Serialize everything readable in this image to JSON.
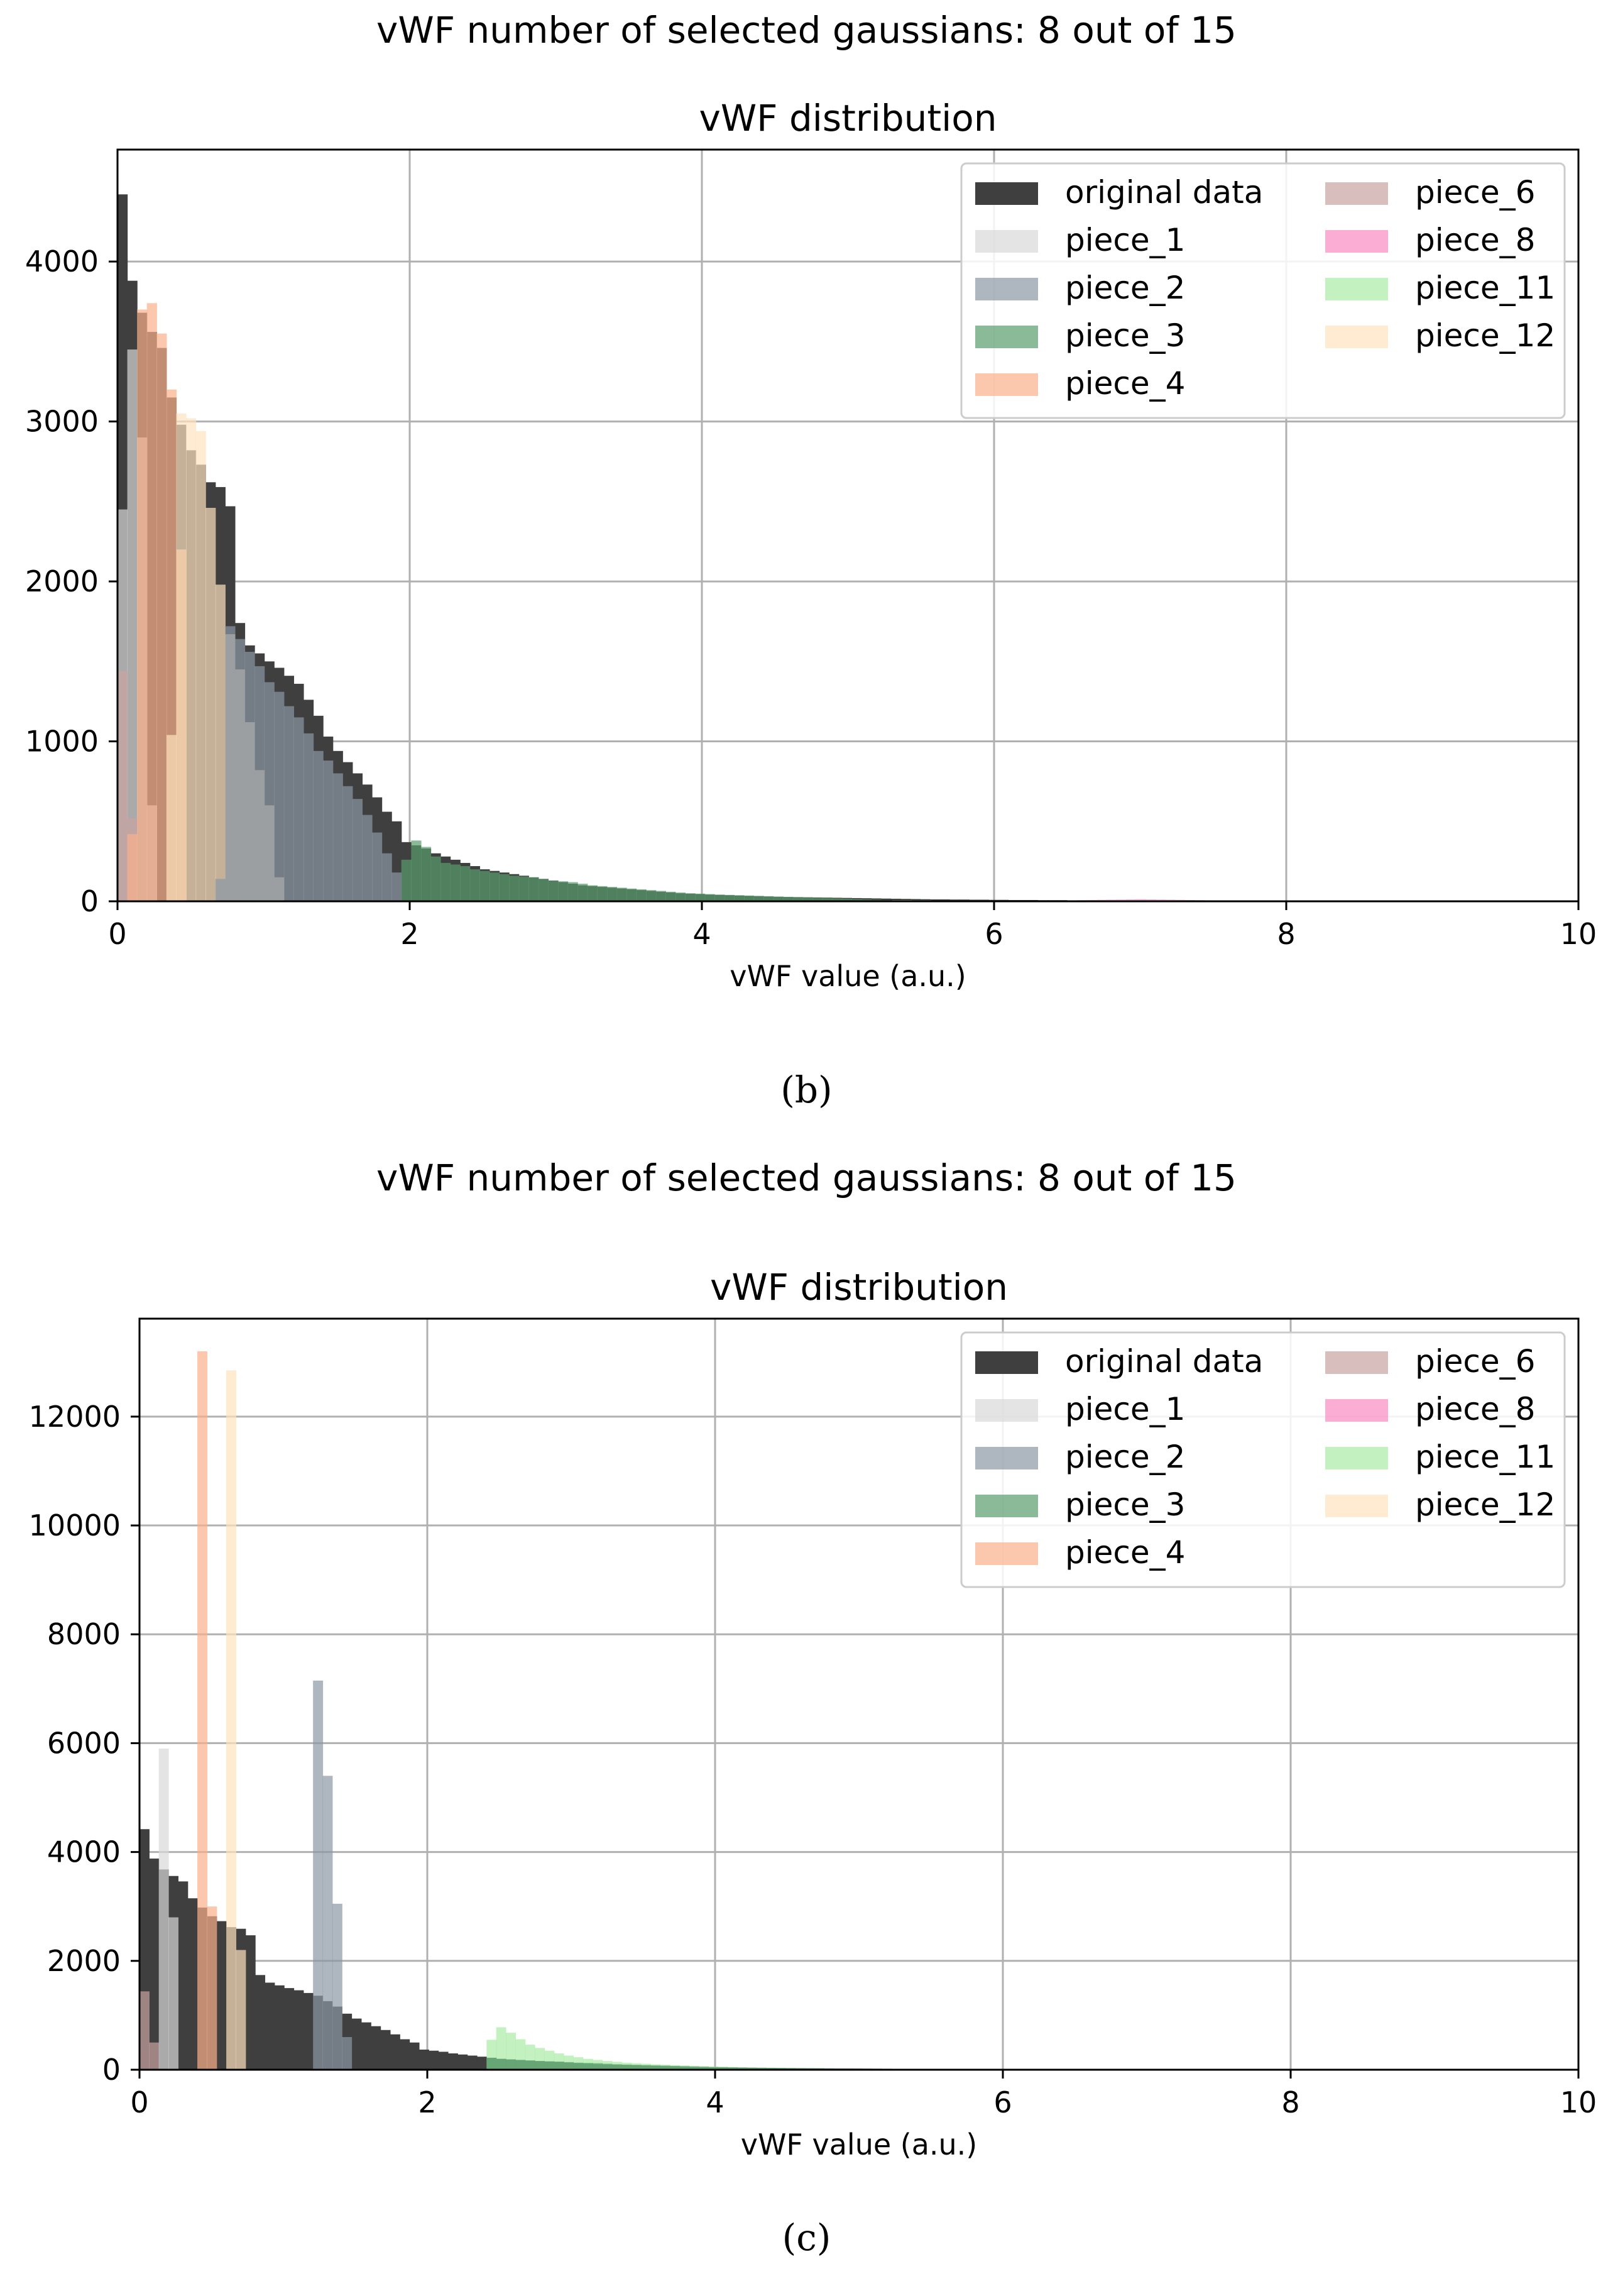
{
  "colors": {
    "original": "#3f3f3f",
    "piece_1": "#d9d9d9",
    "piece_2": "#8c97a5",
    "piece_3": "#5a9c6e",
    "piece_4": "#f9b08c",
    "piece_6": "#c7a3a1",
    "piece_8": "#f98ac0",
    "piece_11": "#a9eda5",
    "piece_12": "#fde3bd"
  },
  "panels": [
    {
      "suptitle": "vWF number of selected gaussians: 8 out of 15",
      "caption": "(b)",
      "chart_data": {
        "type": "bar",
        "title": "vWF distribution",
        "xlabel": "vWF value (a.u.)",
        "ylabel": "",
        "xlim": [
          0,
          10
        ],
        "ylim": [
          0,
          4700
        ],
        "xticks": [
          0,
          2,
          4,
          6,
          8,
          10
        ],
        "xtick_labels": [
          "0",
          "2",
          "4",
          "6",
          "8",
          "10"
        ],
        "yticks": [
          0,
          1000,
          2000,
          3000,
          4000
        ],
        "ytick_labels": [
          "0",
          "1000",
          "2000",
          "3000",
          "4000"
        ],
        "grid": true,
        "legend_position": "top-right",
        "legend": [
          "original data",
          "piece_1",
          "piece_2",
          "piece_3",
          "piece_4",
          "piece_6",
          "piece_8",
          "piece_11",
          "piece_12"
        ],
        "series": [
          {
            "name": "original data",
            "colorKey": "original",
            "opacity": 1,
            "bin_start": 0,
            "bin_width": 0.067,
            "values": [
              4420,
              3880,
              3680,
              3560,
              3460,
              3150,
              2980,
              2820,
              2730,
              2620,
              2590,
              2470,
              1740,
              1600,
              1550,
              1500,
              1460,
              1410,
              1360,
              1260,
              1160,
              1030,
              940,
              870,
              800,
              730,
              650,
              560,
              500,
              370,
              350,
              330,
              300,
              280,
              260,
              240,
              220,
              200,
              190,
              180,
              170,
              160,
              150,
              140,
              130,
              120,
              110,
              100,
              95,
              90,
              85,
              80,
              75,
              70,
              65,
              60,
              55,
              50,
              48,
              45,
              42,
              40,
              38,
              36,
              34,
              32,
              30,
              28,
              27,
              26,
              25,
              24,
              23,
              22,
              21,
              20,
              19,
              18,
              17,
              16,
              15,
              14,
              13,
              12,
              12,
              11,
              11,
              10,
              10,
              9,
              9,
              8,
              8,
              8,
              7,
              7,
              7,
              6,
              6,
              6,
              5,
              5,
              5,
              5,
              4,
              4,
              4,
              4,
              3,
              3,
              3,
              3,
              3,
              3,
              3,
              3,
              3,
              3,
              3,
              3,
              3,
              3,
              3,
              3,
              3,
              3,
              3,
              3,
              3,
              3,
              3,
              3,
              3,
              3,
              3,
              3,
              3,
              3,
              3,
              3,
              3,
              3,
              3,
              3,
              3,
              3,
              3,
              3
            ]
          },
          {
            "name": "piece_1",
            "colorKey": "piece_1",
            "opacity": 0.7,
            "bin_start": 0,
            "bin_width": 0.067,
            "values": [
              2450,
              3450,
              2900,
              600
            ]
          },
          {
            "name": "piece_6",
            "colorKey": "piece_6",
            "opacity": 0.7,
            "bin_start": 0,
            "bin_width": 0.067,
            "values": [
              1440,
              520
            ]
          },
          {
            "name": "piece_4",
            "colorKey": "piece_4",
            "opacity": 0.7,
            "bin_start": 0.067,
            "bin_width": 0.067,
            "values": [
              420,
              3700,
              3740,
              3550,
              3200,
              2200
            ]
          },
          {
            "name": "piece_12",
            "colorKey": "piece_12",
            "opacity": 0.7,
            "bin_start": 0.335,
            "bin_width": 0.067,
            "values": [
              1040,
              3050,
              3020,
              2940,
              2460,
              1980,
              1670,
              1450,
              1120,
              820,
              600,
              150
            ]
          },
          {
            "name": "piece_2",
            "colorKey": "piece_2",
            "opacity": 0.7,
            "bin_start": 0.67,
            "bin_width": 0.067,
            "values": [
              140,
              1720,
              1640,
              1560,
              1470,
              1370,
              1310,
              1220,
              1150,
              1050,
              940,
              880,
              800,
              720,
              640,
              540,
              430,
              300,
              180
            ]
          },
          {
            "name": "piece_3",
            "colorKey": "piece_3",
            "opacity": 0.7,
            "bin_start": 1.943,
            "bin_width": 0.067,
            "values": [
              260,
              380,
              340,
              280,
              240,
              230,
              220,
              200,
              190,
              180,
              170,
              160,
              155,
              150,
              140,
              130,
              125,
              120,
              110,
              100,
              95,
              90,
              85,
              80,
              75,
              70,
              65,
              60,
              55,
              50,
              48,
              45,
              42,
              40,
              38,
              36,
              34,
              32,
              30,
              28,
              26,
              24,
              22,
              20,
              18,
              16,
              14,
              12,
              10,
              8
            ]
          },
          {
            "name": "piece_11",
            "colorKey": "piece_11",
            "opacity": 0.7,
            "bin_start": 5.3,
            "bin_width": 0.067,
            "values": [
              8,
              8,
              7,
              7,
              6,
              6,
              6,
              5,
              5,
              5,
              5,
              4,
              4,
              4,
              4,
              3,
              3,
              3,
              3,
              3
            ]
          },
          {
            "name": "piece_8",
            "colorKey": "piece_8",
            "opacity": 0.7,
            "bin_start": 6.3,
            "bin_width": 0.067,
            "values": [
              3,
              4,
              5,
              6,
              7,
              8,
              9,
              10,
              11,
              12,
              13,
              12,
              11,
              10,
              9,
              8,
              7,
              6,
              5,
              5,
              4,
              4,
              4,
              3,
              3,
              3,
              3,
              3,
              3,
              3,
              3,
              3,
              3,
              3,
              3,
              3,
              3,
              3,
              3,
              3
            ]
          }
        ]
      }
    },
    {
      "suptitle": "vWF number of selected gaussians: 8 out of 15",
      "caption": "(c)",
      "chart_data": {
        "type": "bar",
        "title": "vWF distribution",
        "xlabel": "vWF value (a.u.)",
        "ylabel": "",
        "xlim": [
          0,
          10
        ],
        "ylim": [
          0,
          13800
        ],
        "xticks": [
          0,
          2,
          4,
          6,
          8,
          10
        ],
        "xtick_labels": [
          "0",
          "2",
          "4",
          "6",
          "8",
          "10"
        ],
        "yticks": [
          0,
          2000,
          4000,
          6000,
          8000,
          10000,
          12000
        ],
        "ytick_labels": [
          "0",
          "2000",
          "4000",
          "6000",
          "8000",
          "10000",
          "12000"
        ],
        "grid": true,
        "legend_position": "top-right",
        "legend": [
          "original data",
          "piece_1",
          "piece_2",
          "piece_3",
          "piece_4",
          "piece_6",
          "piece_8",
          "piece_11",
          "piece_12"
        ],
        "series": [
          {
            "name": "original data",
            "colorKey": "original",
            "opacity": 1,
            "bin_start": 0,
            "bin_width": 0.067,
            "values": [
              4420,
              3880,
              3680,
              3560,
              3460,
              3150,
              2980,
              2820,
              2730,
              2620,
              2590,
              2470,
              1740,
              1600,
              1550,
              1500,
              1460,
              1410,
              1360,
              1260,
              1160,
              1030,
              940,
              870,
              800,
              730,
              650,
              560,
              500,
              370,
              350,
              330,
              300,
              280,
              260,
              240,
              220,
              200,
              190,
              180,
              170,
              160,
              150,
              140,
              130,
              120,
              110,
              100,
              95,
              90,
              85,
              80,
              75,
              70,
              65,
              60,
              55,
              50,
              48,
              45,
              42,
              40,
              38,
              36,
              34,
              32,
              30,
              28,
              27,
              26,
              25,
              24,
              23,
              22,
              21,
              20,
              19,
              18,
              17,
              16,
              15,
              14,
              13,
              12,
              12,
              11,
              11,
              10,
              10,
              9,
              9,
              8,
              8,
              8,
              7,
              7,
              7,
              6,
              6,
              6,
              5,
              5,
              5,
              5,
              4,
              4,
              4,
              4,
              3,
              3,
              3,
              3,
              3,
              3,
              3,
              3,
              3,
              3,
              3,
              3,
              3,
              3,
              3,
              3,
              3,
              3,
              3,
              3,
              3,
              3,
              3,
              3,
              3,
              3,
              3,
              3,
              3,
              3,
              3,
              3,
              3,
              3,
              3,
              3,
              3,
              3,
              3,
              3
            ]
          },
          {
            "name": "piece_6",
            "colorKey": "piece_6",
            "opacity": 0.7,
            "bin_start": 0,
            "bin_width": 0.067,
            "values": [
              1440,
              500
            ]
          },
          {
            "name": "piece_1",
            "colorKey": "piece_1",
            "opacity": 0.7,
            "bin_start": 0.134,
            "bin_width": 0.067,
            "values": [
              5900,
              2800
            ]
          },
          {
            "name": "piece_4",
            "colorKey": "piece_4",
            "opacity": 0.7,
            "bin_start": 0.402,
            "bin_width": 0.067,
            "values": [
              13200,
              3000
            ]
          },
          {
            "name": "piece_12",
            "colorKey": "piece_12",
            "opacity": 0.7,
            "bin_start": 0.603,
            "bin_width": 0.067,
            "values": [
              12850,
              2200
            ]
          },
          {
            "name": "piece_2",
            "colorKey": "piece_2",
            "opacity": 0.7,
            "bin_start": 1.206,
            "bin_width": 0.067,
            "values": [
              7150,
              5400,
              3050,
              600
            ]
          },
          {
            "name": "piece_11",
            "colorKey": "piece_11",
            "opacity": 0.7,
            "bin_start": 2.412,
            "bin_width": 0.067,
            "values": [
              550,
              780,
              680,
              560,
              460,
              400,
              350,
              300,
              260,
              230,
              200,
              180,
              160,
              145,
              130,
              120,
              110,
              100,
              92,
              85,
              78,
              72,
              66,
              60,
              55,
              50,
              45,
              40,
              36,
              32,
              28,
              25,
              22,
              20,
              18,
              15,
              12,
              10,
              8,
              6
            ]
          },
          {
            "name": "piece_3",
            "colorKey": "piece_3",
            "opacity": 0.7,
            "bin_start": 2.412,
            "bin_width": 0.067,
            "values": [
              220,
              200,
              190,
              180,
              170,
              160,
              155,
              150,
              140,
              130,
              125,
              120,
              110,
              100,
              95,
              90,
              85,
              80,
              75,
              70,
              65,
              60,
              55,
              50,
              48,
              45,
              42,
              40,
              38,
              36,
              34,
              32,
              30,
              28,
              26,
              24,
              22,
              20,
              18,
              16
            ]
          },
          {
            "name": "piece_8",
            "colorKey": "piece_8",
            "opacity": 0.7,
            "bin_start": 6.3,
            "bin_width": 0.067,
            "values": [
              3,
              4,
              5,
              6,
              7,
              8,
              9,
              10,
              11,
              12,
              13,
              12,
              11,
              10,
              9,
              8,
              7,
              6,
              5,
              5,
              4,
              4,
              4,
              3,
              3,
              3
            ]
          }
        ]
      }
    }
  ]
}
